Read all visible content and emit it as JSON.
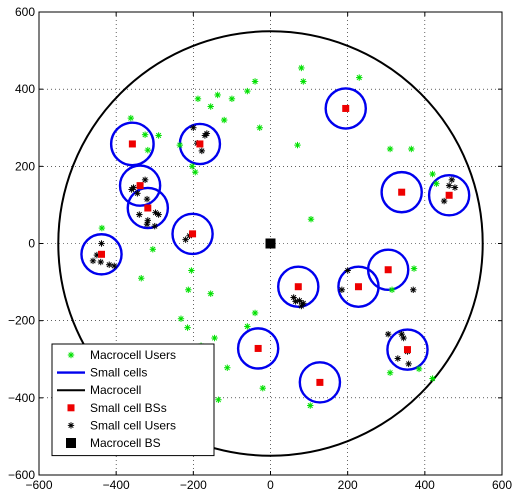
{
  "chart_data": {
    "type": "scatter",
    "title": "",
    "xlabel": "",
    "ylabel": "",
    "xlim": [
      -600,
      600
    ],
    "ylim": [
      -600,
      600
    ],
    "xticks": [
      -600,
      -400,
      -200,
      0,
      200,
      400,
      600
    ],
    "yticks": [
      -600,
      -400,
      -200,
      0,
      200,
      400,
      600
    ],
    "xtick_labels": [
      "−600",
      "−400",
      "−200",
      "0",
      "200",
      "400",
      "600"
    ],
    "ytick_labels": [
      "−600",
      "−400",
      "−200",
      "0",
      "200",
      "400",
      "600"
    ],
    "grid": true,
    "grid_style": "dotted",
    "legend_position": "bottom-left",
    "macrocell": {
      "center": [
        0,
        0
      ],
      "radius": 550,
      "color": "#000000"
    },
    "macrocell_bs": [
      0,
      0
    ],
    "small_cells": [
      {
        "bs": [
          -358,
          258
        ],
        "radius": 55
      },
      {
        "bs": [
          -183,
          258
        ],
        "radius": 52
      },
      {
        "bs": [
          195,
          350
        ],
        "radius": 52
      },
      {
        "bs": [
          -338,
          150
        ],
        "radius": 52
      },
      {
        "bs": [
          -318,
          92
        ],
        "radius": 52
      },
      {
        "bs": [
          -202,
          25
        ],
        "radius": 52
      },
      {
        "bs": [
          -438,
          -28
        ],
        "radius": 52
      },
      {
        "bs": [
          340,
          133
        ],
        "radius": 52
      },
      {
        "bs": [
          463,
          125
        ],
        "radius": 52
      },
      {
        "bs": [
          305,
          -68
        ],
        "radius": 52
      },
      {
        "bs": [
          228,
          -112
        ],
        "radius": 52
      },
      {
        "bs": [
          72,
          -112
        ],
        "radius": 52
      },
      {
        "bs": [
          -32,
          -272
        ],
        "radius": 52
      },
      {
        "bs": [
          128,
          -360
        ],
        "radius": 52
      },
      {
        "bs": [
          355,
          -275
        ],
        "radius": 52
      }
    ],
    "macrocell_users": [
      [
        -437,
        40
      ],
      [
        -362,
        325
      ],
      [
        -325,
        282
      ],
      [
        -318,
        242
      ],
      [
        -290,
        280
      ],
      [
        -335,
        -90
      ],
      [
        -305,
        -15
      ],
      [
        -203,
        200
      ],
      [
        -195,
        185
      ],
      [
        -188,
        375
      ],
      [
        -137,
        385
      ],
      [
        -100,
        375
      ],
      [
        -60,
        395
      ],
      [
        -40,
        420
      ],
      [
        -28,
        300
      ],
      [
        80,
        455
      ],
      [
        85,
        420
      ],
      [
        70,
        255
      ],
      [
        -155,
        355
      ],
      [
        -120,
        320
      ],
      [
        -232,
        -195
      ],
      [
        -215,
        -218
      ],
      [
        -180,
        -265
      ],
      [
        -155,
        -130
      ],
      [
        -145,
        -245
      ],
      [
        -112,
        -322
      ],
      [
        -135,
        -405
      ],
      [
        -60,
        -215
      ],
      [
        -20,
        -375
      ],
      [
        105,
        63
      ],
      [
        230,
        430
      ],
      [
        310,
        245
      ],
      [
        365,
        245
      ],
      [
        420,
        180
      ],
      [
        430,
        155
      ],
      [
        372,
        -65
      ],
      [
        315,
        -120
      ],
      [
        420,
        -350
      ],
      [
        310,
        -335
      ],
      [
        385,
        -325
      ],
      [
        103,
        -420
      ],
      [
        -235,
        255
      ],
      [
        -205,
        -70
      ],
      [
        -213,
        -120
      ],
      [
        -40,
        -180
      ]
    ],
    "small_cell_users": [
      [
        -355,
        145
      ],
      [
        -345,
        130
      ],
      [
        -360,
        140
      ],
      [
        -325,
        165
      ],
      [
        -340,
        75
      ],
      [
        -318,
        60
      ],
      [
        -290,
        75
      ],
      [
        -300,
        45
      ],
      [
        -298,
        80
      ],
      [
        -320,
        115
      ],
      [
        -190,
        260
      ],
      [
        -200,
        300
      ],
      [
        -170,
        280
      ],
      [
        -165,
        285
      ],
      [
        -178,
        240
      ],
      [
        -210,
        20
      ],
      [
        -220,
        10
      ],
      [
        -438,
        0
      ],
      [
        -460,
        -45
      ],
      [
        -440,
        -48
      ],
      [
        -418,
        -55
      ],
      [
        -405,
        -58
      ],
      [
        -450,
        -30
      ],
      [
        200,
        -70
      ],
      [
        185,
        -120
      ],
      [
        60,
        -140
      ],
      [
        75,
        -148
      ],
      [
        80,
        -162
      ],
      [
        65,
        -150
      ],
      [
        305,
        -235
      ],
      [
        340,
        -235
      ],
      [
        358,
        -312
      ],
      [
        355,
        -280
      ],
      [
        345,
        -245
      ],
      [
        450,
        110
      ],
      [
        478,
        145
      ],
      [
        470,
        165
      ],
      [
        463,
        150
      ],
      [
        330,
        -298
      ],
      [
        370,
        -120
      ],
      [
        -320,
        50
      ],
      [
        85,
        -155
      ]
    ],
    "colors": {
      "macrocell_users": "#00e000",
      "small_cells": "#0000ee",
      "macrocell": "#000000",
      "small_cell_bs": "#ee0000",
      "small_cell_users": "#000000",
      "macrocell_bs": "#000000"
    },
    "legend": [
      {
        "label": "Macrocell Users",
        "marker": "green-asterisk"
      },
      {
        "label": "Small cells",
        "marker": "blue-line"
      },
      {
        "label": "Macrocell",
        "marker": "black-line"
      },
      {
        "label": "Small cell BSs",
        "marker": "red-square"
      },
      {
        "label": "Small cell Users",
        "marker": "black-asterisk"
      },
      {
        "label": "Macrocell BS",
        "marker": "black-square"
      }
    ]
  }
}
